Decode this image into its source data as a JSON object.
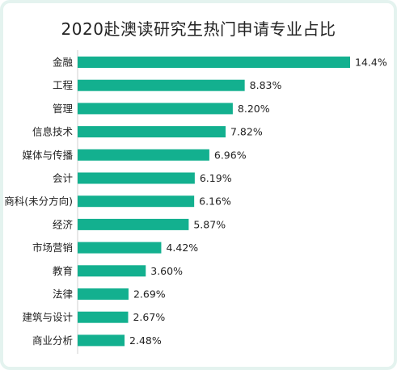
{
  "chart_data": {
    "type": "bar",
    "orientation": "horizontal",
    "title": "2020赴澳读研究生热门申请专业占比",
    "xlabel": "",
    "ylabel": "",
    "categories": [
      "金融",
      "工程",
      "管理",
      "信息技术",
      "媒体与传播",
      "会计",
      "商科(未分方向)",
      "经济",
      "市场营销",
      "教育",
      "法律",
      "建筑与设计",
      "商业分析"
    ],
    "values": [
      14.4,
      8.83,
      8.2,
      7.82,
      6.96,
      6.19,
      6.16,
      5.87,
      4.42,
      3.6,
      2.69,
      2.67,
      2.48
    ],
    "value_labels": [
      "14.4%",
      "8.83%",
      "8.20%",
      "7.82%",
      "6.96%",
      "6.19%",
      "6.16%",
      "5.87%",
      "4.42%",
      "3.60%",
      "2.69%",
      "2.67%",
      "2.48%"
    ],
    "xlim": [
      0,
      14.4
    ],
    "grid": false,
    "bar_color": "#13b08f"
  }
}
